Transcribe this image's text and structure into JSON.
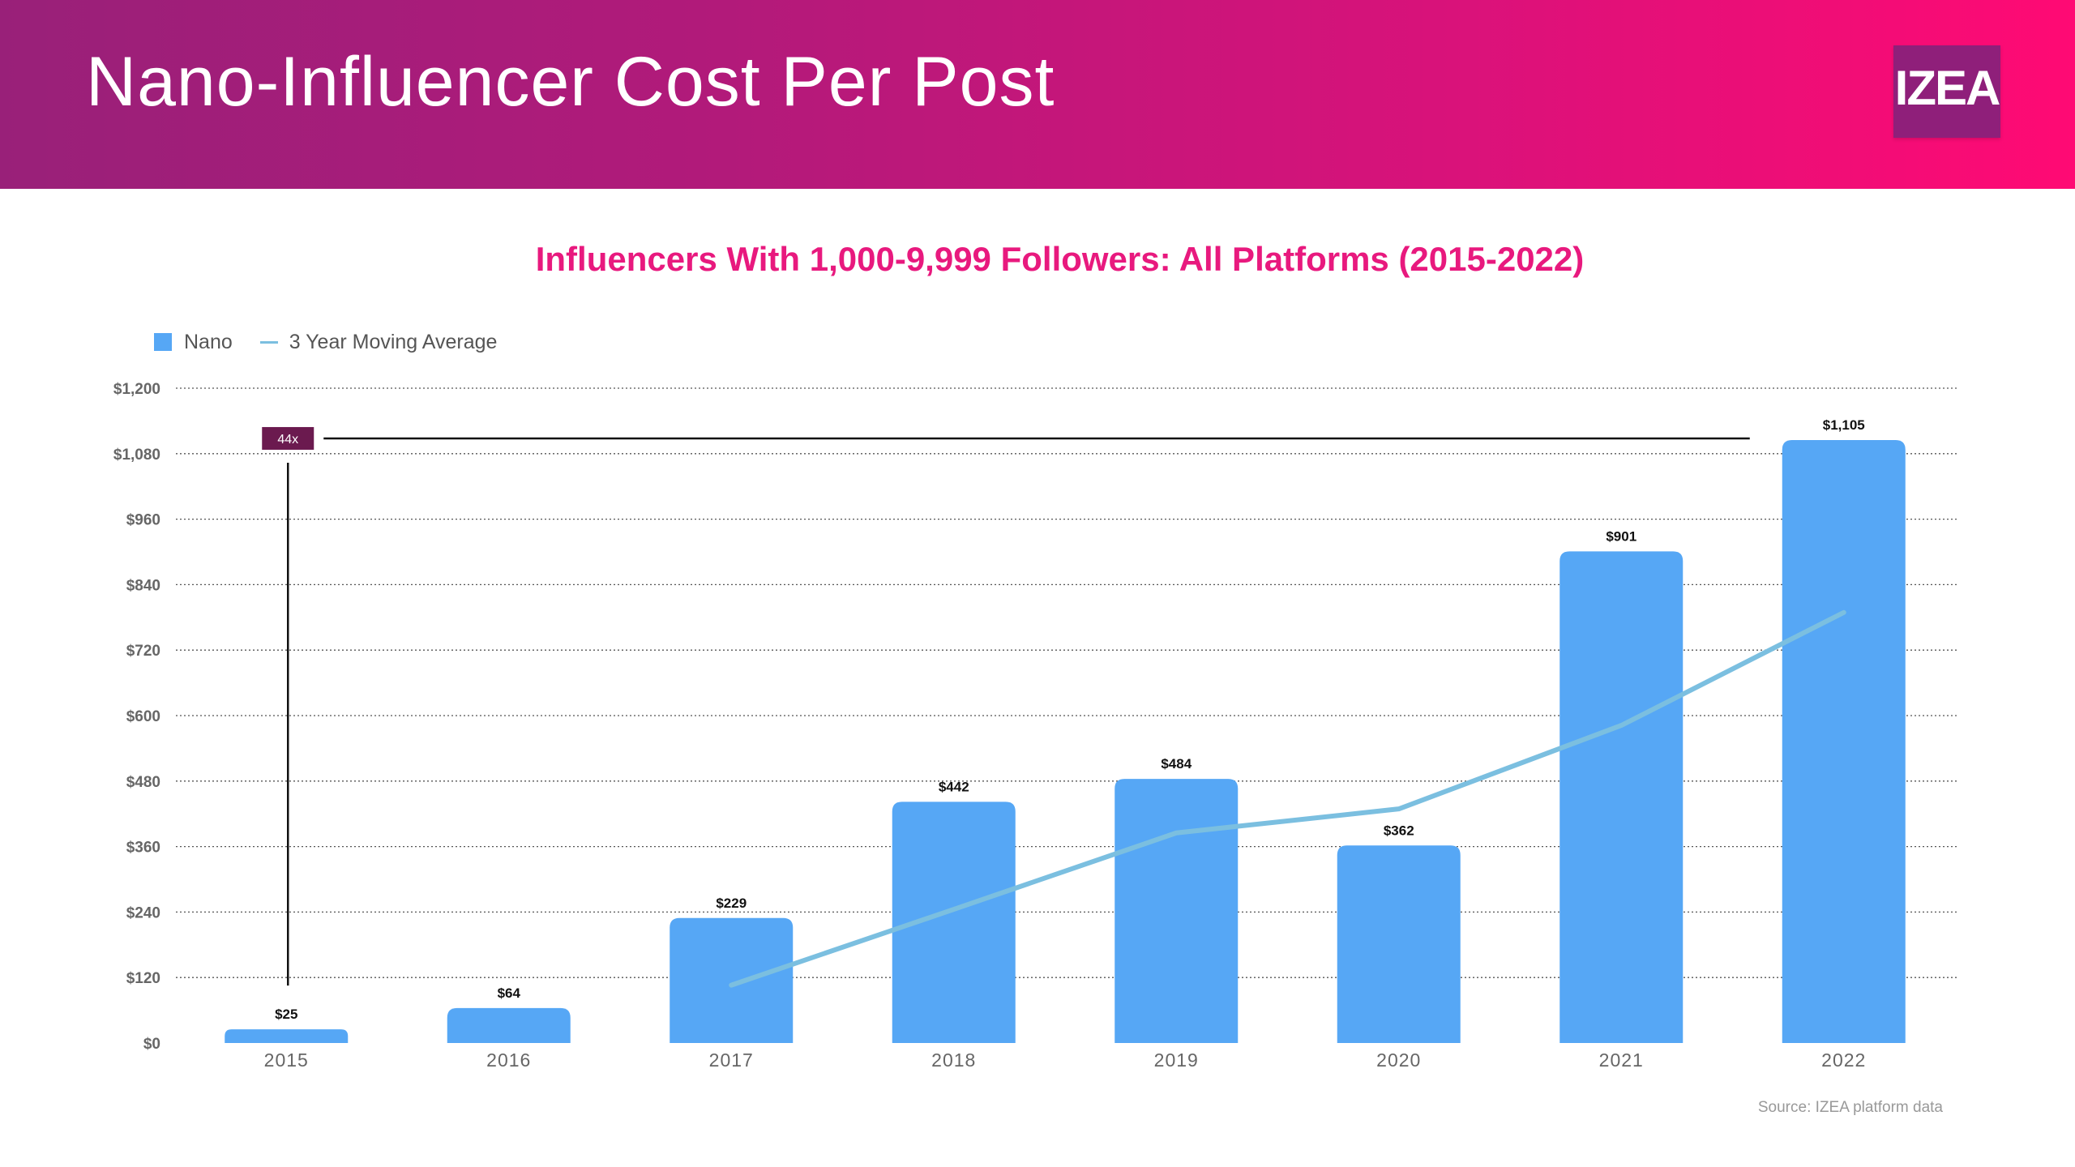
{
  "header": {
    "title": "Nano-Influencer Cost Per Post",
    "logo_text": "IZEA"
  },
  "source": "Source: IZEA platform data",
  "colors": {
    "bar": "#56a7f5",
    "line": "#7bbfe0",
    "title": "#e8197e",
    "annotation": "#6b1a4f"
  },
  "chart_data": {
    "type": "bar",
    "title": "Influencers With 1,000-9,999 Followers: All Platforms (2015-2022)",
    "xlabel": "",
    "ylabel": "",
    "categories": [
      "2015",
      "2016",
      "2017",
      "2018",
      "2019",
      "2020",
      "2021",
      "2022"
    ],
    "ylim": [
      0,
      1200
    ],
    "yticks": [
      0,
      120,
      240,
      360,
      480,
      600,
      720,
      840,
      960,
      1080,
      1200
    ],
    "ytick_labels": [
      "$0",
      "$120",
      "$240",
      "$360",
      "$480",
      "$600",
      "$720",
      "$840",
      "$960",
      "$1,080",
      "$1,200"
    ],
    "grid": true,
    "legend_position": "top-left",
    "series": [
      {
        "name": "Nano",
        "type": "bar",
        "values": [
          25,
          64,
          229,
          442,
          484,
          362,
          901,
          1105
        ],
        "labels": [
          "$25",
          "$64",
          "$229",
          "$442",
          "$484",
          "$362",
          "$901",
          "$1,105"
        ]
      },
      {
        "name": "3 Year Moving Average",
        "type": "line",
        "values": [
          null,
          null,
          106,
          245,
          385,
          429,
          582,
          789
        ]
      }
    ],
    "annotations": [
      {
        "text": "44x",
        "from_category": "2015",
        "to_category": "2022",
        "level": 1105
      }
    ]
  }
}
